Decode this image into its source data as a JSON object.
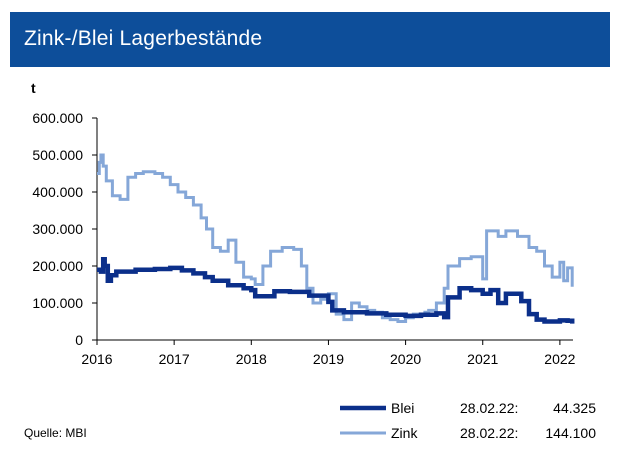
{
  "header": {
    "title": "Zink-/Blei Lagerbestände"
  },
  "source": "Quelle: MBI",
  "chart_data": {
    "type": "line",
    "title": "Zink-/Blei Lagerbestände",
    "ylabel": "t",
    "xlabel": "",
    "xlim": [
      2016,
      2022.17
    ],
    "ylim": [
      0,
      600000
    ],
    "y_ticks": [
      "0",
      "100.000",
      "200.000",
      "300.000",
      "400.000",
      "500.000",
      "600.000"
    ],
    "x_ticks": [
      "2016",
      "2017",
      "2018",
      "2019",
      "2020",
      "2021",
      "2022"
    ],
    "grid": false,
    "legend_position": "bottom-right",
    "series": [
      {
        "name": "Blei",
        "color": "#0b2f8a",
        "last_date": "28.02.22:",
        "last_value": "44.325",
        "x": [
          2016.0,
          2016.05,
          2016.08,
          2016.1,
          2016.14,
          2016.18,
          2016.25,
          2016.5,
          2016.75,
          2016.95,
          2017.1,
          2017.25,
          2017.4,
          2017.5,
          2017.7,
          2017.9,
          2018.0,
          2018.05,
          2018.3,
          2018.5,
          2018.75,
          2019.0,
          2019.05,
          2019.2,
          2019.5,
          2019.75,
          2020.0,
          2020.2,
          2020.4,
          2020.5,
          2020.55,
          2020.7,
          2020.85,
          2021.0,
          2021.1,
          2021.2,
          2021.3,
          2021.5,
          2021.6,
          2021.7,
          2021.8,
          2022.0,
          2022.1,
          2022.16
        ],
        "values": [
          190000,
          185000,
          218000,
          200000,
          160000,
          175000,
          185000,
          190000,
          192000,
          195000,
          188000,
          180000,
          170000,
          160000,
          148000,
          140000,
          135000,
          118000,
          132000,
          130000,
          120000,
          103000,
          80000,
          75000,
          72000,
          68000,
          65000,
          68000,
          72000,
          62000,
          115000,
          140000,
          135000,
          125000,
          135000,
          100000,
          125000,
          105000,
          70000,
          55000,
          50000,
          53000,
          52000,
          44325
        ]
      },
      {
        "name": "Zink",
        "color": "#85a7d8",
        "last_date": "28.02.22:",
        "last_value": "144.100",
        "x": [
          2016.0,
          2016.03,
          2016.05,
          2016.08,
          2016.12,
          2016.2,
          2016.3,
          2016.4,
          2016.5,
          2016.6,
          2016.75,
          2016.85,
          2016.95,
          2017.05,
          2017.15,
          2017.25,
          2017.35,
          2017.42,
          2017.5,
          2017.6,
          2017.7,
          2017.8,
          2017.9,
          2018.0,
          2018.05,
          2018.15,
          2018.25,
          2018.4,
          2018.55,
          2018.65,
          2018.72,
          2018.8,
          2018.9,
          2019.0,
          2019.1,
          2019.2,
          2019.3,
          2019.4,
          2019.5,
          2019.6,
          2019.7,
          2019.8,
          2019.9,
          2020.0,
          2020.1,
          2020.25,
          2020.3,
          2020.4,
          2020.5,
          2020.55,
          2020.7,
          2020.85,
          2021.0,
          2021.05,
          2021.2,
          2021.3,
          2021.45,
          2021.6,
          2021.7,
          2021.8,
          2021.9,
          2022.0,
          2022.05,
          2022.1,
          2022.16
        ],
        "values": [
          450000,
          480000,
          500000,
          470000,
          430000,
          390000,
          380000,
          440000,
          450000,
          455000,
          450000,
          440000,
          420000,
          400000,
          385000,
          365000,
          330000,
          300000,
          250000,
          240000,
          270000,
          210000,
          170000,
          165000,
          150000,
          200000,
          240000,
          250000,
          245000,
          200000,
          140000,
          100000,
          110000,
          125000,
          70000,
          55000,
          100000,
          90000,
          80000,
          75000,
          60000,
          55000,
          50000,
          60000,
          70000,
          75000,
          80000,
          100000,
          140000,
          200000,
          220000,
          225000,
          165000,
          295000,
          280000,
          295000,
          280000,
          250000,
          240000,
          200000,
          170000,
          210000,
          160000,
          195000,
          144100
        ]
      }
    ]
  }
}
